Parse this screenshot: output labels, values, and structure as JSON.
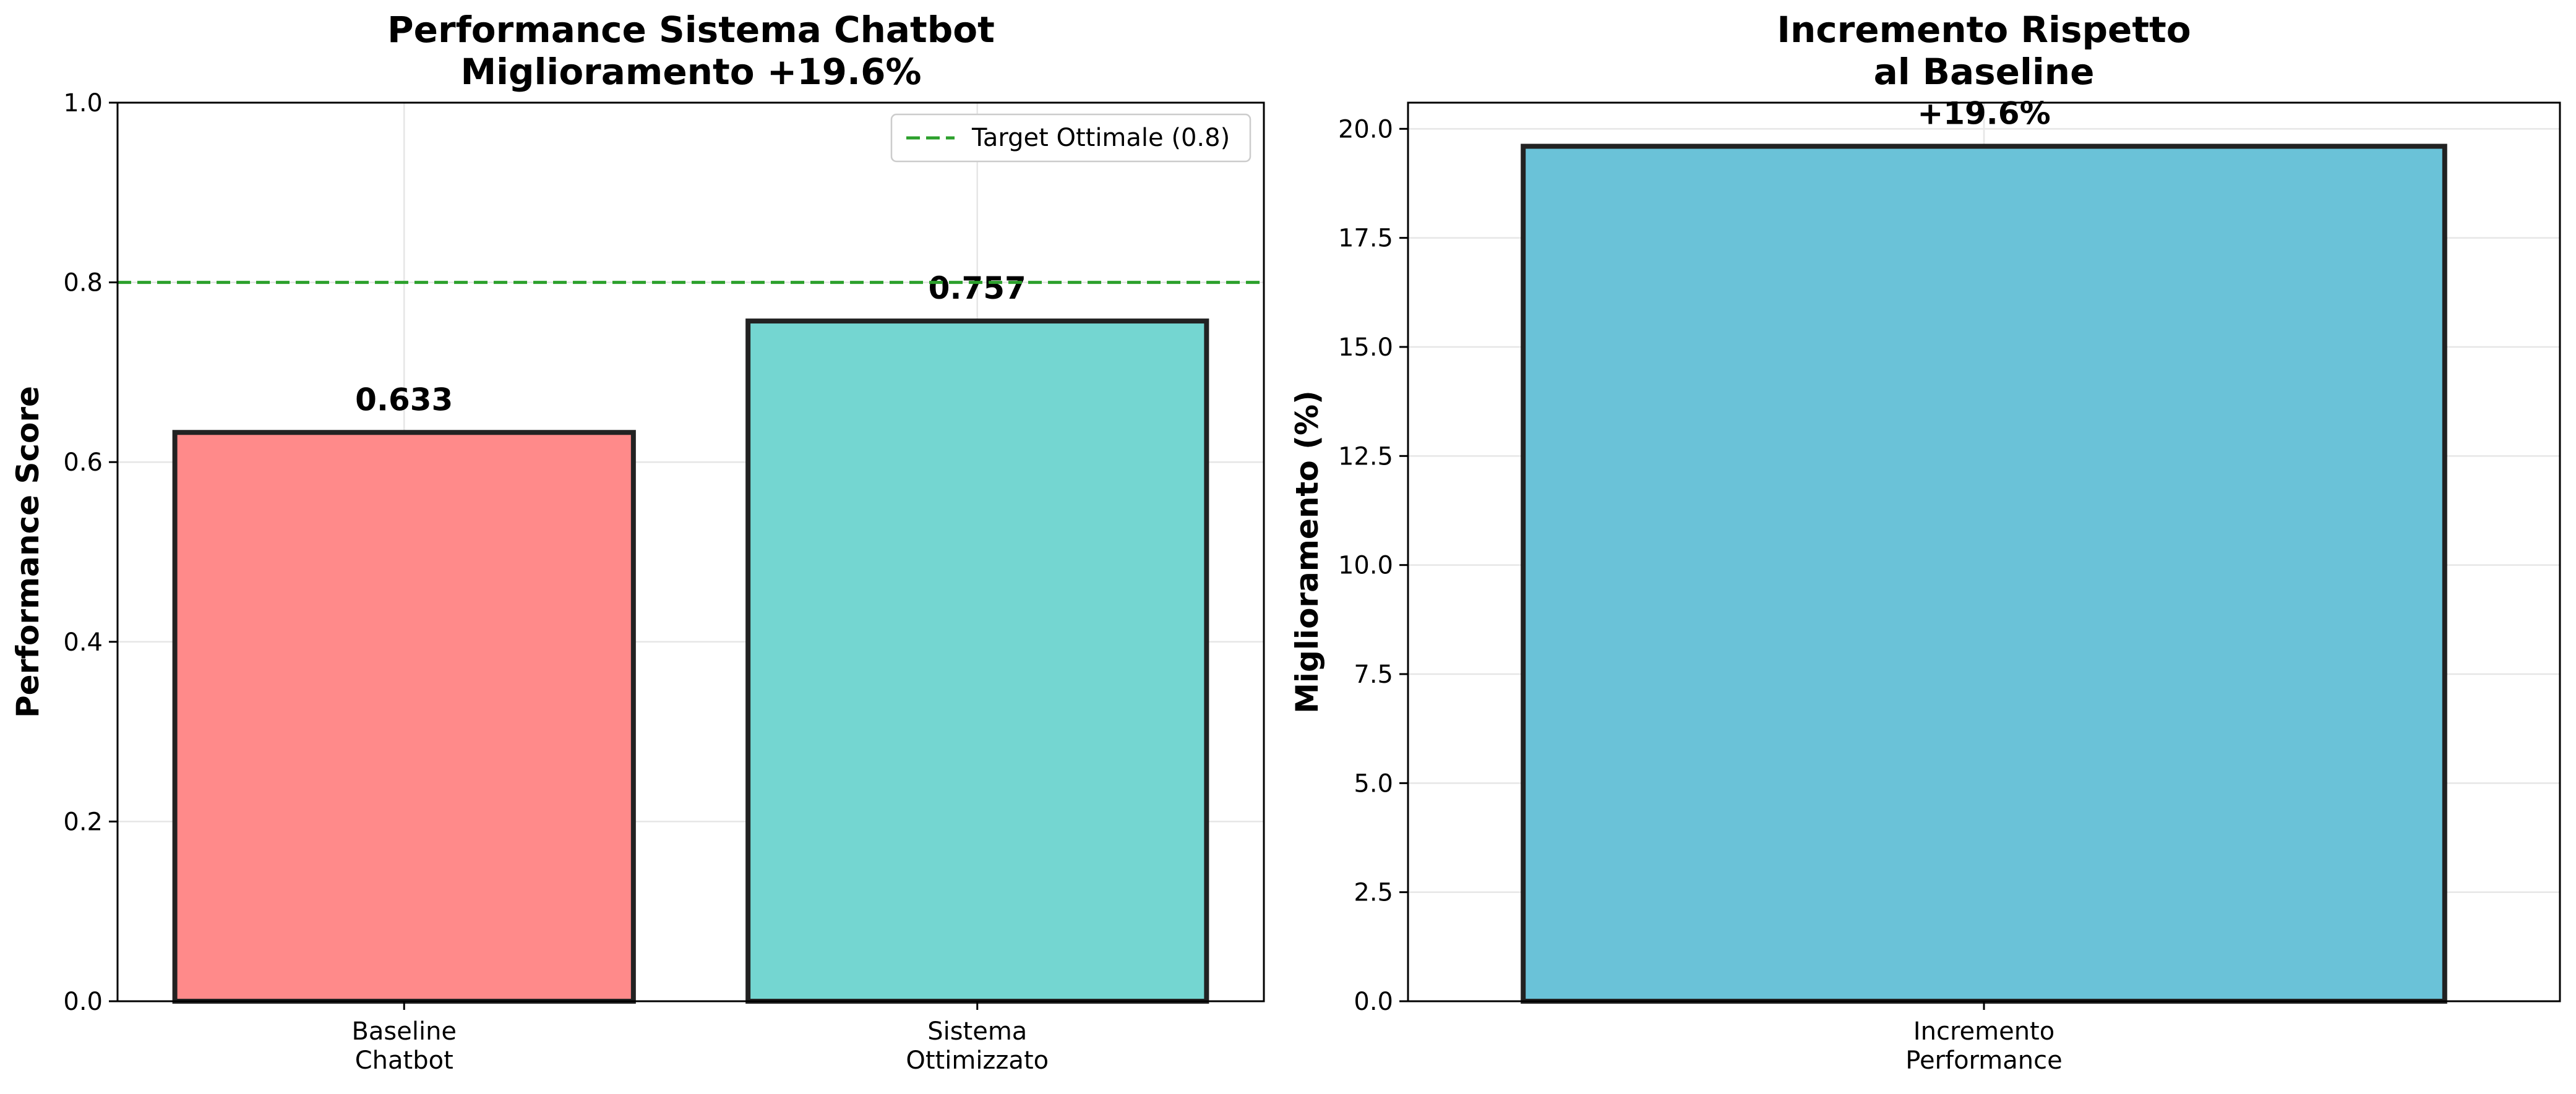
{
  "chart_data": [
    {
      "type": "bar",
      "title": [
        "Performance Sistema Chatbot",
        "Miglioramento +19.6%"
      ],
      "xlabel": "",
      "ylabel": "Performance Score",
      "categories": [
        [
          "Baseline",
          "Chatbot"
        ],
        [
          "Sistema",
          "Ottimizzato"
        ]
      ],
      "values": [
        0.633,
        0.757
      ],
      "value_labels": [
        "0.633",
        "0.757"
      ],
      "colors": [
        "#ff8a8a",
        "#74d6d1"
      ],
      "edge_color": "#222222",
      "ylim": [
        0,
        1.0
      ],
      "yticks": [
        0.0,
        0.2,
        0.4,
        0.6,
        0.8,
        1.0
      ],
      "ytick_labels": [
        "0.0",
        "0.2",
        "0.4",
        "0.6",
        "0.8",
        "1.0"
      ],
      "reference_line": {
        "value": 0.8,
        "label": "Target Ottimale (0.8)",
        "color": "#2ca02c",
        "style": "dashed"
      },
      "legend_position": "top-right",
      "grid": true
    },
    {
      "type": "bar",
      "title": [
        "Incremento Rispetto",
        "al Baseline"
      ],
      "xlabel": "",
      "ylabel": "Miglioramento (%)",
      "categories": [
        [
          "Incremento",
          "Performance"
        ]
      ],
      "values": [
        19.6
      ],
      "value_labels": [
        "+19.6%"
      ],
      "colors": [
        "#6ac2d8"
      ],
      "edge_color": "#222222",
      "ylim": [
        0,
        20.6
      ],
      "yticks": [
        0.0,
        2.5,
        5.0,
        7.5,
        10.0,
        12.5,
        15.0,
        17.5,
        20.0
      ],
      "ytick_labels": [
        "0.0",
        "2.5",
        "5.0",
        "7.5",
        "10.0",
        "12.5",
        "15.0",
        "17.5",
        "20.0"
      ],
      "grid": true
    }
  ]
}
